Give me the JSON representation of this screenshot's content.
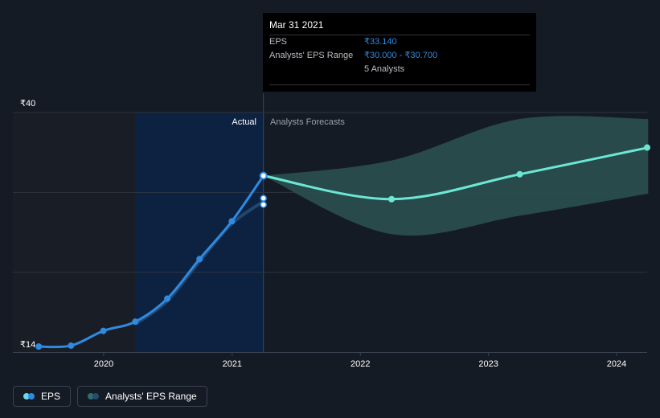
{
  "tooltip": {
    "date": "Mar 31 2021",
    "eps_label": "EPS",
    "eps_value": "₹33.140",
    "range_label": "Analysts' EPS Range",
    "range_value": "₹30.000 - ₹30.700",
    "analysts": "5 Analysts"
  },
  "regions": {
    "actual_label": "Actual",
    "forecast_label": "Analysts Forecasts"
  },
  "legend": {
    "eps_label": "EPS",
    "range_label": "Analysts' EPS Range"
  },
  "colors": {
    "background": "#151b25",
    "eps_line": "#2f8ae0",
    "forecast_line": "#6be8d4",
    "forecast_band": "#2b5252",
    "actual_highlight": "#0c2240",
    "grid": "#2e3440"
  },
  "chart_data": {
    "type": "line",
    "y_tick_labels": [
      "₹40",
      "₹14"
    ],
    "ylim": [
      14,
      40
    ],
    "x_tick_labels": [
      "2020",
      "2021",
      "2022",
      "2023",
      "2024"
    ],
    "grid": true,
    "legend_position": "bottom-left",
    "series": [
      {
        "name": "EPS",
        "kind": "actual",
        "points": [
          {
            "x": "2019-06-30",
            "y": 14.6
          },
          {
            "x": "2019-09-30",
            "y": 14.7
          },
          {
            "x": "2019-12-31",
            "y": 16.3
          },
          {
            "x": "2020-03-31",
            "y": 17.3
          },
          {
            "x": "2020-06-30",
            "y": 19.8
          },
          {
            "x": "2020-09-30",
            "y": 24.1
          },
          {
            "x": "2020-12-31",
            "y": 28.2
          },
          {
            "x": "2021-03-31",
            "y": 33.14
          }
        ]
      },
      {
        "name": "Analysts' EPS Range",
        "kind": "estimate",
        "points": [
          {
            "x": "2021-03-31",
            "y_low": 30.0,
            "y_high": 30.7
          }
        ]
      },
      {
        "name": "EPS",
        "kind": "forecast",
        "points": [
          {
            "x": "2021-03-31",
            "y": 33.14
          },
          {
            "x": "2022-03-31",
            "y": 30.6
          },
          {
            "x": "2023-03-31",
            "y": 33.3
          },
          {
            "x": "2024-03-31",
            "y": 36.2
          }
        ],
        "range": [
          {
            "x": "2021-03-31",
            "y_low": 33.14,
            "y_high": 33.14
          },
          {
            "x": "2022-03-31",
            "y_low": 26.8,
            "y_high": 34.8
          },
          {
            "x": "2023-03-31",
            "y_low": 28.8,
            "y_high": 39.3
          },
          {
            "x": "2024-03-31",
            "y_low": 31.2,
            "y_high": 39.3
          }
        ]
      }
    ]
  }
}
